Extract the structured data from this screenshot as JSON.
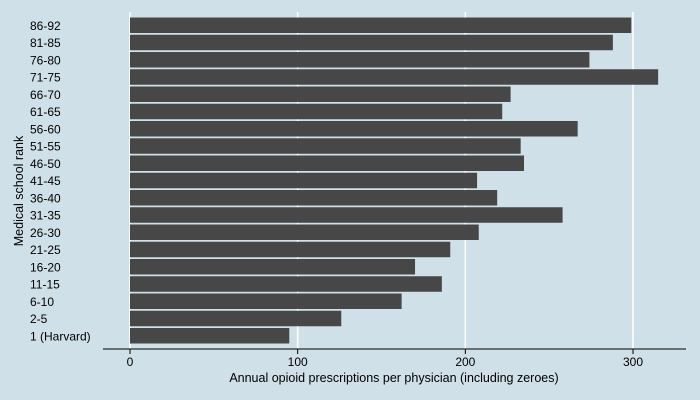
{
  "colors": {
    "background": "#d0e0e8",
    "bar": "#474747",
    "gridline": "#ffffff",
    "axis": "#000000",
    "text": "#000000"
  },
  "chart_data": {
    "type": "bar",
    "orientation": "horizontal",
    "title": "",
    "xlabel": "Annual opioid prescriptions per physician (including zeroes)",
    "ylabel": "Medical school rank",
    "categories": [
      "86-92",
      "81-85",
      "76-80",
      "71-75",
      "66-70",
      "61-65",
      "56-60",
      "51-55",
      "46-50",
      "41-45",
      "36-40",
      "31-35",
      "26-30",
      "21-25",
      "16-20",
      "11-15",
      "6-10",
      "2-5",
      "1 (Harvard)"
    ],
    "values": [
      299,
      288,
      274,
      315,
      227,
      222,
      267,
      233,
      235,
      207,
      219,
      258,
      208,
      191,
      170,
      186,
      162,
      126,
      95
    ],
    "xlim": [
      0,
      330
    ],
    "xticks": [
      0,
      100,
      200,
      300
    ],
    "grid": "vertical",
    "legend": "none"
  }
}
